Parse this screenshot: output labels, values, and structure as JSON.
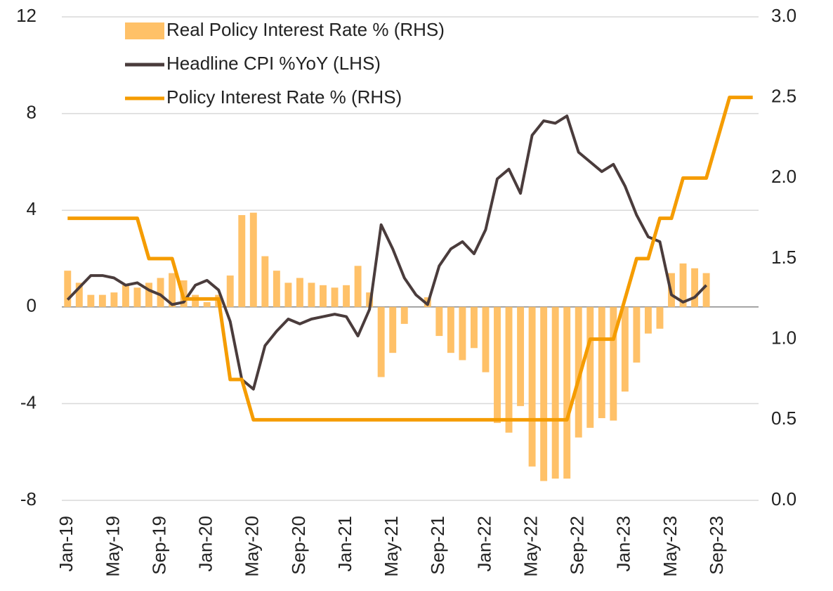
{
  "chart_data": {
    "type": "combo",
    "categories": [
      "Jan-19",
      null,
      null,
      null,
      "May-19",
      null,
      null,
      null,
      "Sep-19",
      null,
      null,
      null,
      "Jan-20",
      null,
      null,
      null,
      "May-20",
      null,
      null,
      null,
      "Sep-20",
      null,
      null,
      null,
      "Jan-21",
      null,
      null,
      null,
      "May-21",
      null,
      null,
      null,
      "Sep-21",
      null,
      null,
      null,
      "Jan-22",
      null,
      null,
      null,
      "May-22",
      null,
      null,
      null,
      "Sep-22",
      null,
      null,
      null,
      "Jan-23",
      null,
      null,
      null,
      "May-23",
      null,
      null,
      null,
      "Sep-23",
      null,
      null,
      null
    ],
    "series": [
      {
        "name": "Real Policy Interest Rate % (RHS)",
        "type": "bar",
        "color": "#ffc168",
        "values": [
          1.5,
          1.0,
          0.5,
          0.5,
          0.6,
          0.9,
          0.8,
          1.0,
          1.2,
          1.4,
          1.1,
          0.5,
          0.2,
          0.5,
          1.3,
          3.8,
          3.9,
          2.1,
          1.5,
          1.0,
          1.2,
          1.0,
          0.9,
          0.8,
          0.9,
          1.7,
          0.6,
          -2.9,
          -1.9,
          -0.7,
          0.0,
          0.4,
          -1.2,
          -1.9,
          -2.2,
          -1.7,
          -2.7,
          -4.8,
          -5.2,
          -4.1,
          -6.6,
          -7.2,
          -7.1,
          -7.1,
          -5.4,
          -5.0,
          -4.6,
          -4.7,
          -3.5,
          -2.3,
          -1.1,
          -0.9,
          1.4,
          1.8,
          1.6,
          1.4,
          null,
          null,
          null,
          null
        ]
      },
      {
        "name": "Headline CPI %YoY (LHS)",
        "type": "line",
        "color": "#4a3c3c",
        "values": [
          0.3,
          0.8,
          1.3,
          1.3,
          1.2,
          0.9,
          1.0,
          0.7,
          0.5,
          0.1,
          0.2,
          0.9,
          1.1,
          0.7,
          -0.6,
          -3.0,
          -3.4,
          -1.6,
          -1.0,
          -0.5,
          -0.7,
          -0.5,
          -0.4,
          -0.3,
          -0.4,
          -1.2,
          -0.1,
          3.4,
          2.4,
          1.2,
          0.5,
          0.1,
          1.7,
          2.4,
          2.7,
          2.2,
          3.2,
          5.3,
          5.7,
          4.7,
          7.1,
          7.7,
          7.6,
          7.9,
          6.4,
          6.0,
          5.6,
          5.9,
          5.0,
          3.8,
          2.9,
          2.7,
          0.5,
          0.2,
          0.4,
          0.9,
          null,
          null,
          null,
          null
        ]
      },
      {
        "name": "Policy Interest Rate % (RHS)",
        "type": "line",
        "axis": "y2",
        "color": "#f59c00",
        "values": [
          1.75,
          1.75,
          1.75,
          1.75,
          1.75,
          1.75,
          1.75,
          1.5,
          1.5,
          1.5,
          1.25,
          1.25,
          1.25,
          1.25,
          0.75,
          0.75,
          0.5,
          0.5,
          0.5,
          0.5,
          0.5,
          0.5,
          0.5,
          0.5,
          0.5,
          0.5,
          0.5,
          0.5,
          0.5,
          0.5,
          0.5,
          0.5,
          0.5,
          0.5,
          0.5,
          0.5,
          0.5,
          0.5,
          0.5,
          0.5,
          0.5,
          0.5,
          0.5,
          0.5,
          0.75,
          1.0,
          1.0,
          1.0,
          1.25,
          1.5,
          1.5,
          1.75,
          1.75,
          2.0,
          2.0,
          2.0,
          2.25,
          2.5,
          2.5,
          2.5
        ]
      }
    ],
    "ylim": [
      -8,
      12
    ],
    "yticks": [
      -8,
      -4,
      0,
      4,
      8,
      12
    ],
    "y2lim": [
      0,
      3
    ],
    "y2ticks": [
      {
        "value": 0,
        "label": "0.0"
      },
      0.5,
      {
        "value": 1,
        "label": "1.0"
      },
      1.5,
      {
        "value": 2,
        "label": "2.0"
      },
      2.5,
      {
        "value": 3,
        "label": "3.0"
      }
    ],
    "grid": true,
    "legend": "top-left"
  }
}
